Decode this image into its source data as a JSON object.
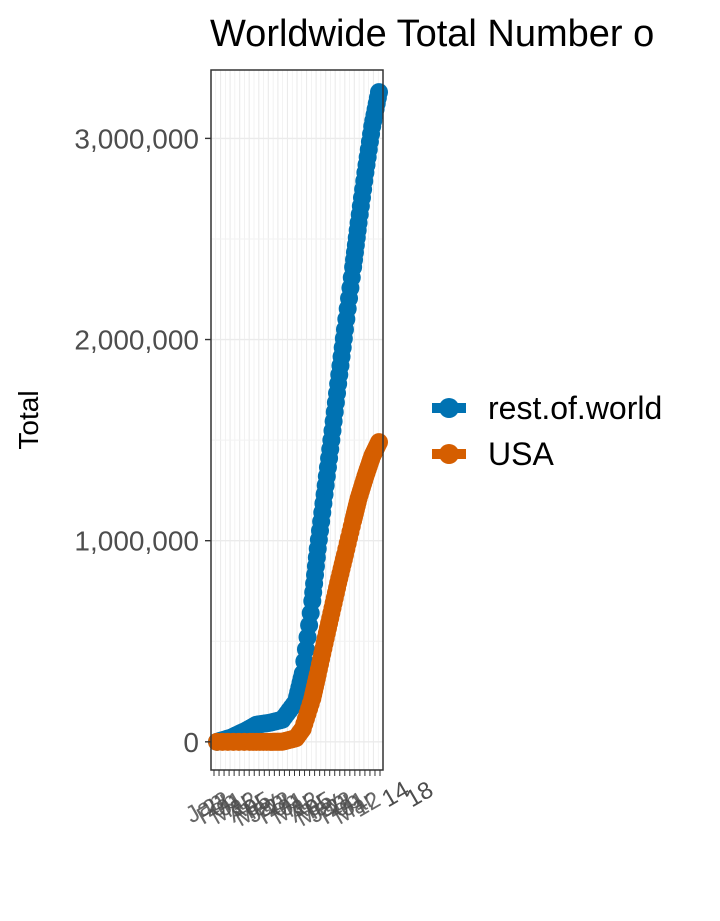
{
  "chart_data": {
    "type": "line",
    "title": "Worldwide Total Number o",
    "xlabel": "",
    "ylabel": "Total",
    "ylim": [
      -140000,
      3340000
    ],
    "yticks": [
      0,
      1000000,
      2000000,
      3000000
    ],
    "ytick_labels": [
      "0",
      "1,000,000",
      "2,000,000",
      "3,000,000"
    ],
    "x_range": [
      "2020-01-22",
      "2020-05-20"
    ],
    "x_tick_labels_legible": [
      "14",
      "18"
    ],
    "grid": true,
    "legend_position": "right",
    "series": [
      {
        "name": "rest.of.world",
        "color": "#0072B2",
        "x": [
          "2020-01-22",
          "2020-02-01",
          "2020-02-12",
          "2020-02-20",
          "2020-03-01",
          "2020-03-10",
          "2020-03-20",
          "2020-03-25",
          "2020-04-01",
          "2020-04-05",
          "2020-04-10",
          "2020-04-15",
          "2020-04-20",
          "2020-04-25",
          "2020-05-01",
          "2020-05-05",
          "2020-05-10",
          "2020-05-15",
          "2020-05-20"
        ],
        "values": [
          0,
          20000,
          55000,
          85000,
          95000,
          110000,
          200000,
          340000,
          700000,
          960000,
          1230000,
          1500000,
          1780000,
          2050000,
          2360000,
          2580000,
          2830000,
          3060000,
          3230000
        ]
      },
      {
        "name": "USA",
        "color": "#D55E00",
        "x": [
          "2020-01-22",
          "2020-02-15",
          "2020-03-01",
          "2020-03-10",
          "2020-03-20",
          "2020-03-25",
          "2020-04-01",
          "2020-04-05",
          "2020-04-10",
          "2020-04-15",
          "2020-04-20",
          "2020-04-25",
          "2020-05-01",
          "2020-05-05",
          "2020-05-10",
          "2020-05-15",
          "2020-05-20"
        ],
        "values": [
          0,
          0,
          0,
          500,
          18000,
          65000,
          215000,
          335000,
          490000,
          640000,
          790000,
          930000,
          1100000,
          1210000,
          1320000,
          1420000,
          1490000
        ]
      }
    ]
  }
}
